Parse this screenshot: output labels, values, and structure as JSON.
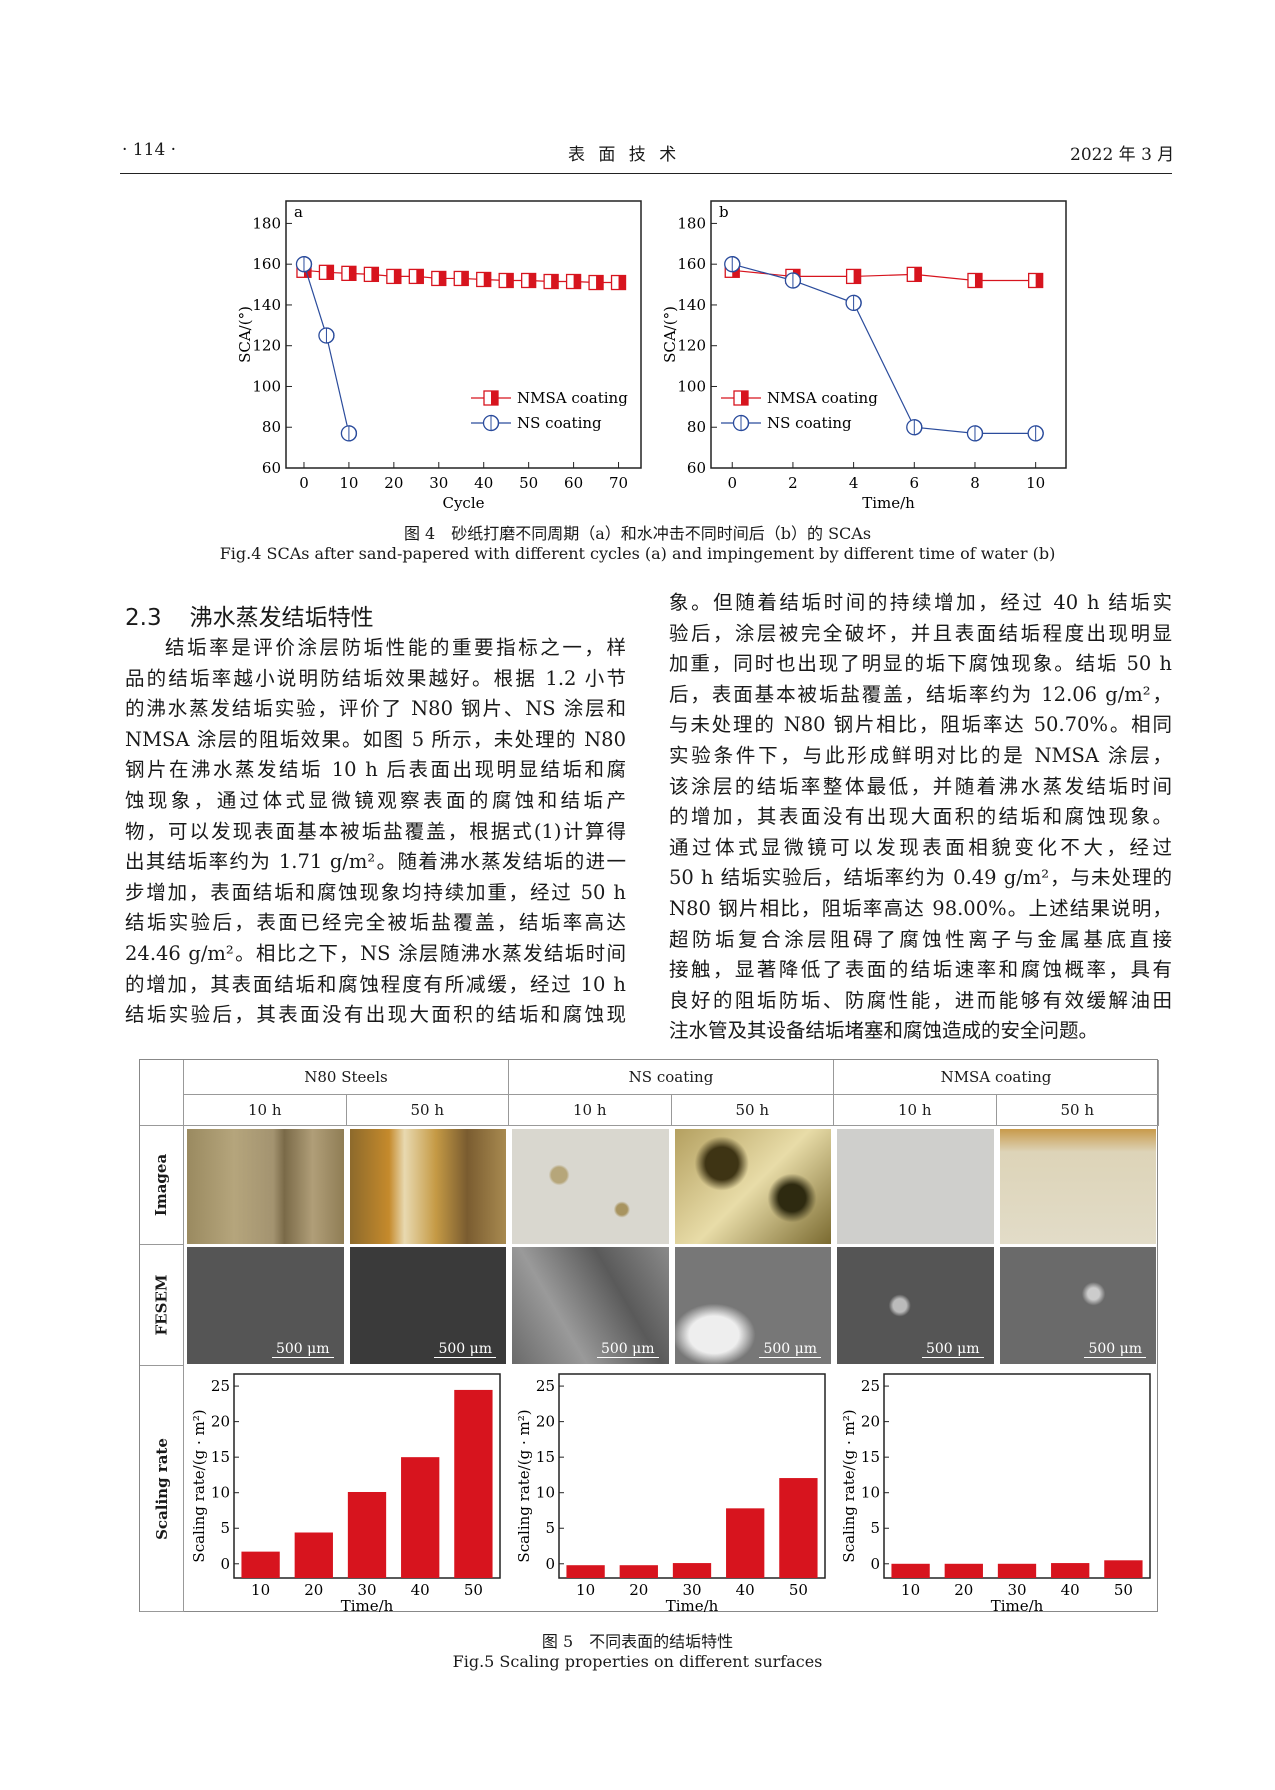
{
  "header": {
    "page": "· 114 ·",
    "journal": "表 面 技 术",
    "date": "2022 年 3 月"
  },
  "figure4": {
    "caption_cn": "图 4　砂纸打磨不同周期（a）和水冲击不同时间后（b）的 SCAs",
    "caption_en": "Fig.4 SCAs after sand-papered with different cycles (a) and impingement by different time of water (b)"
  },
  "section": {
    "number": "2.3",
    "title": "沸水蒸发结垢特性"
  },
  "body": {
    "left_lines": [
      "结垢率是评价涂层防垢性能的重要指标之一，样",
      "品的结垢率越小说明防结垢效果越好。根据 1.2 小节",
      "的沸水蒸发结垢实验，评价了 N80 钢片、NS 涂层和",
      "NMSA 涂层的阻垢效果。如图 5 所示，未处理的 N80",
      "钢片在沸水蒸发结垢 10 h 后表面出现明显结垢和腐",
      "蚀现象，通过体式显微镜观察表面的腐蚀和结垢产",
      "物，可以发现表面基本被垢盐覆盖，根据式(1)计算得",
      "出其结垢率约为 1.71 g/m²。随着沸水蒸发结垢的进一",
      "步增加，表面结垢和腐蚀现象均持续加重，经过 50 h",
      "结垢实验后，表面已经完全被垢盐覆盖，结垢率高达",
      "24.46 g/m²。相比之下，NS 涂层随沸水蒸发结垢时间",
      "的增加，其表面结垢和腐蚀程度有所减缓，经过 10 h",
      "结垢实验后，其表面没有出现大面积的结垢和腐蚀现"
    ],
    "right_lines": [
      "象。但随着结垢时间的持续增加，经过 40 h 结垢实",
      "验后，涂层被完全破坏，并且表面结垢程度出现明显",
      "加重，同时也出现了明显的垢下腐蚀现象。结垢 50 h",
      "后，表面基本被垢盐覆盖，结垢率约为 12.06 g/m²，",
      "与未处理的 N80 钢片相比，阻垢率达 50.70%。相同",
      "实验条件下，与此形成鲜明对比的是 NMSA 涂层，",
      "该涂层的结垢率整体最低，并随着沸水蒸发结垢时间",
      "的增加，其表面没有出现大面积的结垢和腐蚀现象。",
      "通过体式显微镜可以发现表面相貌变化不大，经过",
      "50 h 结垢实验后，结垢率约为 0.49 g/m²，与未处理的",
      "N80 钢片相比，阻垢率高达 98.00%。上述结果说明，",
      "超防垢复合涂层阻碍了腐蚀性离子与金属基底直接",
      "接触，显著降低了表面的结垢速率和腐蚀概率，具有",
      "良好的阻垢防垢、防腐性能，进而能够有效缓解油田",
      "注水管及其设备结垢堵塞和腐蚀造成的安全问题。"
    ]
  },
  "figure5": {
    "groups": [
      "N80 Steels",
      "NS coating",
      "NMSA coating"
    ],
    "times": [
      "10 h",
      "50 h"
    ],
    "row_labels": [
      "Imagea",
      "FESEM",
      "Scaling rate"
    ],
    "scale_bar": "500 μm",
    "caption_cn": "图 5　不同表面的结垢特性",
    "caption_en": "Fig.5 Scaling properties on different surfaces"
  },
  "chart_data": [
    {
      "type": "line",
      "panel": "a",
      "xlabel": "Cycle",
      "ylabel": "SCA/(°)",
      "xlim": [
        -4,
        75
      ],
      "ylim": [
        60,
        191
      ],
      "xticks": [
        0,
        10,
        20,
        30,
        40,
        50,
        60,
        70
      ],
      "yticks": [
        60,
        80,
        100,
        120,
        140,
        160,
        180
      ],
      "legend": "center-right",
      "series": [
        {
          "name": "NMSA coating",
          "color": "#d7141e",
          "marker": "square-half",
          "x": [
            0,
            5,
            10,
            15,
            20,
            25,
            30,
            35,
            40,
            45,
            50,
            55,
            60,
            65,
            70
          ],
          "y": [
            157,
            156,
            155.5,
            155,
            154,
            154,
            153,
            153,
            152.5,
            152,
            152,
            151.5,
            151.5,
            151,
            151
          ]
        },
        {
          "name": "NS coating",
          "color": "#2b4c9c",
          "marker": "circle-half",
          "x": [
            0,
            5,
            10
          ],
          "y": [
            160,
            125,
            77
          ]
        }
      ]
    },
    {
      "type": "line",
      "panel": "b",
      "xlabel": "Time/h",
      "ylabel": "SCA/(°)",
      "xlim": [
        -0.7,
        11
      ],
      "ylim": [
        60,
        191
      ],
      "xticks": [
        0,
        2,
        4,
        6,
        8,
        10
      ],
      "yticks": [
        60,
        80,
        100,
        120,
        140,
        160,
        180
      ],
      "legend": "center-left",
      "series": [
        {
          "name": "NMSA coating",
          "color": "#d7141e",
          "marker": "square-half",
          "x": [
            0,
            2,
            4,
            6,
            8,
            10
          ],
          "y": [
            157,
            154,
            154,
            155,
            152,
            152
          ]
        },
        {
          "name": "NS coating",
          "color": "#2b4c9c",
          "marker": "circle-half",
          "x": [
            0,
            2,
            4,
            6,
            8,
            10
          ],
          "y": [
            160,
            152,
            141,
            80,
            77,
            77
          ]
        }
      ]
    },
    {
      "type": "bar",
      "panel": "N80 Steels",
      "xlabel": "Time/h",
      "ylabel": "Scaling rate/(g · m²)",
      "categories": [
        "10",
        "20",
        "30",
        "40",
        "50"
      ],
      "values": [
        1.71,
        4.4,
        10.1,
        15.0,
        24.46
      ],
      "ylim": [
        -2,
        26.7
      ],
      "yticks": [
        0,
        5,
        10,
        15,
        20,
        25
      ],
      "color": "#d7141e"
    },
    {
      "type": "bar",
      "panel": "NS coating",
      "xlabel": "Time/h",
      "ylabel": "Scaling rate/(g · m²)",
      "categories": [
        "10",
        "20",
        "30",
        "40",
        "50"
      ],
      "values": [
        -0.2,
        -0.2,
        0.1,
        7.8,
        12.06
      ],
      "ylim": [
        -2,
        26.7
      ],
      "yticks": [
        0,
        5,
        10,
        15,
        20,
        25
      ],
      "color": "#d7141e"
    },
    {
      "type": "bar",
      "panel": "NMSA coating",
      "xlabel": "Time/h",
      "ylabel": "Scaling rate/(g · m²)",
      "categories": [
        "10",
        "20",
        "30",
        "40",
        "50"
      ],
      "values": [
        0.0,
        0.0,
        0.0,
        0.1,
        0.49
      ],
      "ylim": [
        -2,
        26.7
      ],
      "yticks": [
        0,
        5,
        10,
        15,
        20,
        25
      ],
      "color": "#d7141e"
    }
  ]
}
